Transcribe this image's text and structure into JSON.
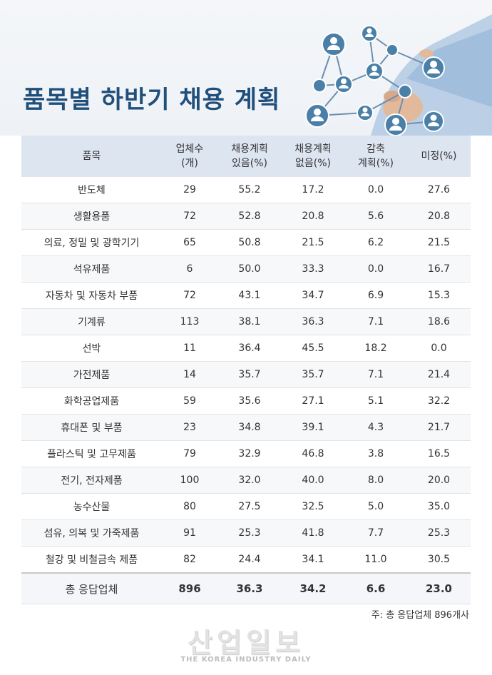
{
  "title": "품목별 하반기 채용 계획",
  "headers": {
    "item": "품목",
    "count_1": "업체수",
    "count_2": "(개)",
    "plan_yes_1": "채용계획",
    "plan_yes_2": "있음(%)",
    "plan_no_1": "채용계획",
    "plan_no_2": "없음(%)",
    "cut_1": "감축",
    "cut_2": "계획(%)",
    "undecided": "미정(%)"
  },
  "rows": [
    {
      "item": "반도체",
      "count": "29",
      "yes": "55.2",
      "no": "17.2",
      "cut": "0.0",
      "undecided": "27.6"
    },
    {
      "item": "생활용품",
      "count": "72",
      "yes": "52.8",
      "no": "20.8",
      "cut": "5.6",
      "undecided": "20.8"
    },
    {
      "item": "의료, 정밀 및 광학기기",
      "count": "65",
      "yes": "50.8",
      "no": "21.5",
      "cut": "6.2",
      "undecided": "21.5"
    },
    {
      "item": "석유제품",
      "count": "6",
      "yes": "50.0",
      "no": "33.3",
      "cut": "0.0",
      "undecided": "16.7"
    },
    {
      "item": "자동차 및 자동차 부품",
      "count": "72",
      "yes": "43.1",
      "no": "34.7",
      "cut": "6.9",
      "undecided": "15.3"
    },
    {
      "item": "기계류",
      "count": "113",
      "yes": "38.1",
      "no": "36.3",
      "cut": "7.1",
      "undecided": "18.6"
    },
    {
      "item": "선박",
      "count": "11",
      "yes": "36.4",
      "no": "45.5",
      "cut": "18.2",
      "undecided": "0.0"
    },
    {
      "item": "가전제품",
      "count": "14",
      "yes": "35.7",
      "no": "35.7",
      "cut": "7.1",
      "undecided": "21.4"
    },
    {
      "item": "화학공업제품",
      "count": "59",
      "yes": "35.6",
      "no": "27.1",
      "cut": "5.1",
      "undecided": "32.2"
    },
    {
      "item": "휴대폰 및 부품",
      "count": "23",
      "yes": "34.8",
      "no": "39.1",
      "cut": "4.3",
      "undecided": "21.7"
    },
    {
      "item": "플라스틱 및 고무제품",
      "count": "79",
      "yes": "32.9",
      "no": "46.8",
      "cut": "3.8",
      "undecided": "16.5"
    },
    {
      "item": "전기, 전자제품",
      "count": "100",
      "yes": "32.0",
      "no": "40.0",
      "cut": "8.0",
      "undecided": "20.0"
    },
    {
      "item": "농수산물",
      "count": "80",
      "yes": "27.5",
      "no": "32.5",
      "cut": "5.0",
      "undecided": "35.0"
    },
    {
      "item": "섬유, 의복 및 가죽제품",
      "count": "91",
      "yes": "25.3",
      "no": "41.8",
      "cut": "7.7",
      "undecided": "25.3"
    },
    {
      "item": "철강 및 비철금속 제품",
      "count": "82",
      "yes": "24.4",
      "no": "34.1",
      "cut": "11.0",
      "undecided": "30.5"
    }
  ],
  "total": {
    "item": "총 응답업체",
    "count": "896",
    "yes": "36.3",
    "no": "34.2",
    "cut": "6.6",
    "undecided": "23.0"
  },
  "note": "주: 총 응답업체 896개사",
  "watermark": {
    "main": "산업일보",
    "sub": "THE KOREA INDUSTRY DAILY"
  },
  "colors": {
    "title": "#1f4f7a",
    "header_bg": "#dde5f1",
    "node": "#4a7fa8"
  }
}
